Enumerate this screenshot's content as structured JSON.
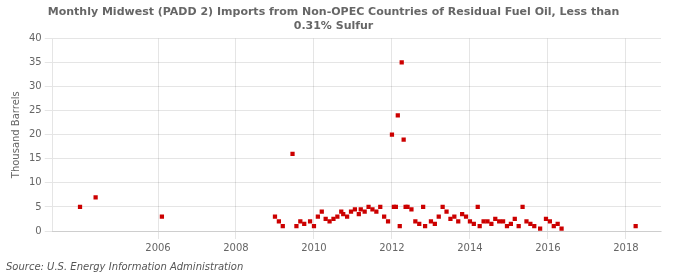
{
  "chart_data": {
    "type": "scatter",
    "title": "Monthly Midwest (PADD 2) Imports from Non-OPEC Countries of Residual Fuel Oil, Less than\n0.31% Sulfur",
    "ylabel": "Thousand Barrels",
    "source": "Source: U.S. Energy Information Administration",
    "color": "#cc0000",
    "marker": "square",
    "grid": true,
    "xlim": [
      2003.3,
      2018.9
    ],
    "xticks": [
      2006,
      2008,
      2010,
      2012,
      2014,
      2016,
      2018
    ],
    "ylim": [
      0,
      40
    ],
    "yticks": [
      0,
      5,
      10,
      15,
      20,
      25,
      30,
      35,
      40
    ],
    "x": [
      2004.0,
      2004.4,
      2006.1,
      2009.0,
      2009.1,
      2009.2,
      2009.45,
      2009.55,
      2009.65,
      2009.75,
      2009.9,
      2010.0,
      2010.1,
      2010.2,
      2010.3,
      2010.4,
      2010.5,
      2010.6,
      2010.7,
      2010.75,
      2010.85,
      2010.95,
      2011.05,
      2011.15,
      2011.2,
      2011.3,
      2011.4,
      2011.5,
      2011.6,
      2011.7,
      2011.8,
      2011.9,
      2012.0,
      2012.05,
      2012.1,
      2012.15,
      2012.2,
      2012.25,
      2012.3,
      2012.35,
      2012.4,
      2012.5,
      2012.6,
      2012.7,
      2012.8,
      2012.85,
      2013.0,
      2013.1,
      2013.2,
      2013.3,
      2013.4,
      2013.5,
      2013.6,
      2013.7,
      2013.8,
      2013.9,
      2014.0,
      2014.1,
      2014.2,
      2014.25,
      2014.35,
      2014.45,
      2014.55,
      2014.65,
      2014.75,
      2014.85,
      2014.95,
      2015.05,
      2015.15,
      2015.25,
      2015.35,
      2015.45,
      2015.55,
      2015.65,
      2015.8,
      2015.95,
      2016.05,
      2016.15,
      2016.25,
      2016.35,
      2018.25
    ],
    "values": [
      5.0,
      7.0,
      3.0,
      3.0,
      2.0,
      1.0,
      16.0,
      1.0,
      2.0,
      1.5,
      2.0,
      1.0,
      3.0,
      4.0,
      2.5,
      2.0,
      2.5,
      3.0,
      4.0,
      3.5,
      3.0,
      4.0,
      4.5,
      3.5,
      4.5,
      4.0,
      5.0,
      4.5,
      4.0,
      5.0,
      3.0,
      2.0,
      20.0,
      5.0,
      5.0,
      24.0,
      1.0,
      35.0,
      19.0,
      5.0,
      5.0,
      4.5,
      2.0,
      1.5,
      5.0,
      1.0,
      2.0,
      1.5,
      3.0,
      5.0,
      4.0,
      2.5,
      3.0,
      2.0,
      3.5,
      3.0,
      2.0,
      1.5,
      5.0,
      1.0,
      2.0,
      2.0,
      1.5,
      2.5,
      2.0,
      2.0,
      1.0,
      1.5,
      2.5,
      1.0,
      5.0,
      2.0,
      1.5,
      1.0,
      0.5,
      2.5,
      2.0,
      1.0,
      1.5,
      0.5,
      1.0
    ]
  }
}
